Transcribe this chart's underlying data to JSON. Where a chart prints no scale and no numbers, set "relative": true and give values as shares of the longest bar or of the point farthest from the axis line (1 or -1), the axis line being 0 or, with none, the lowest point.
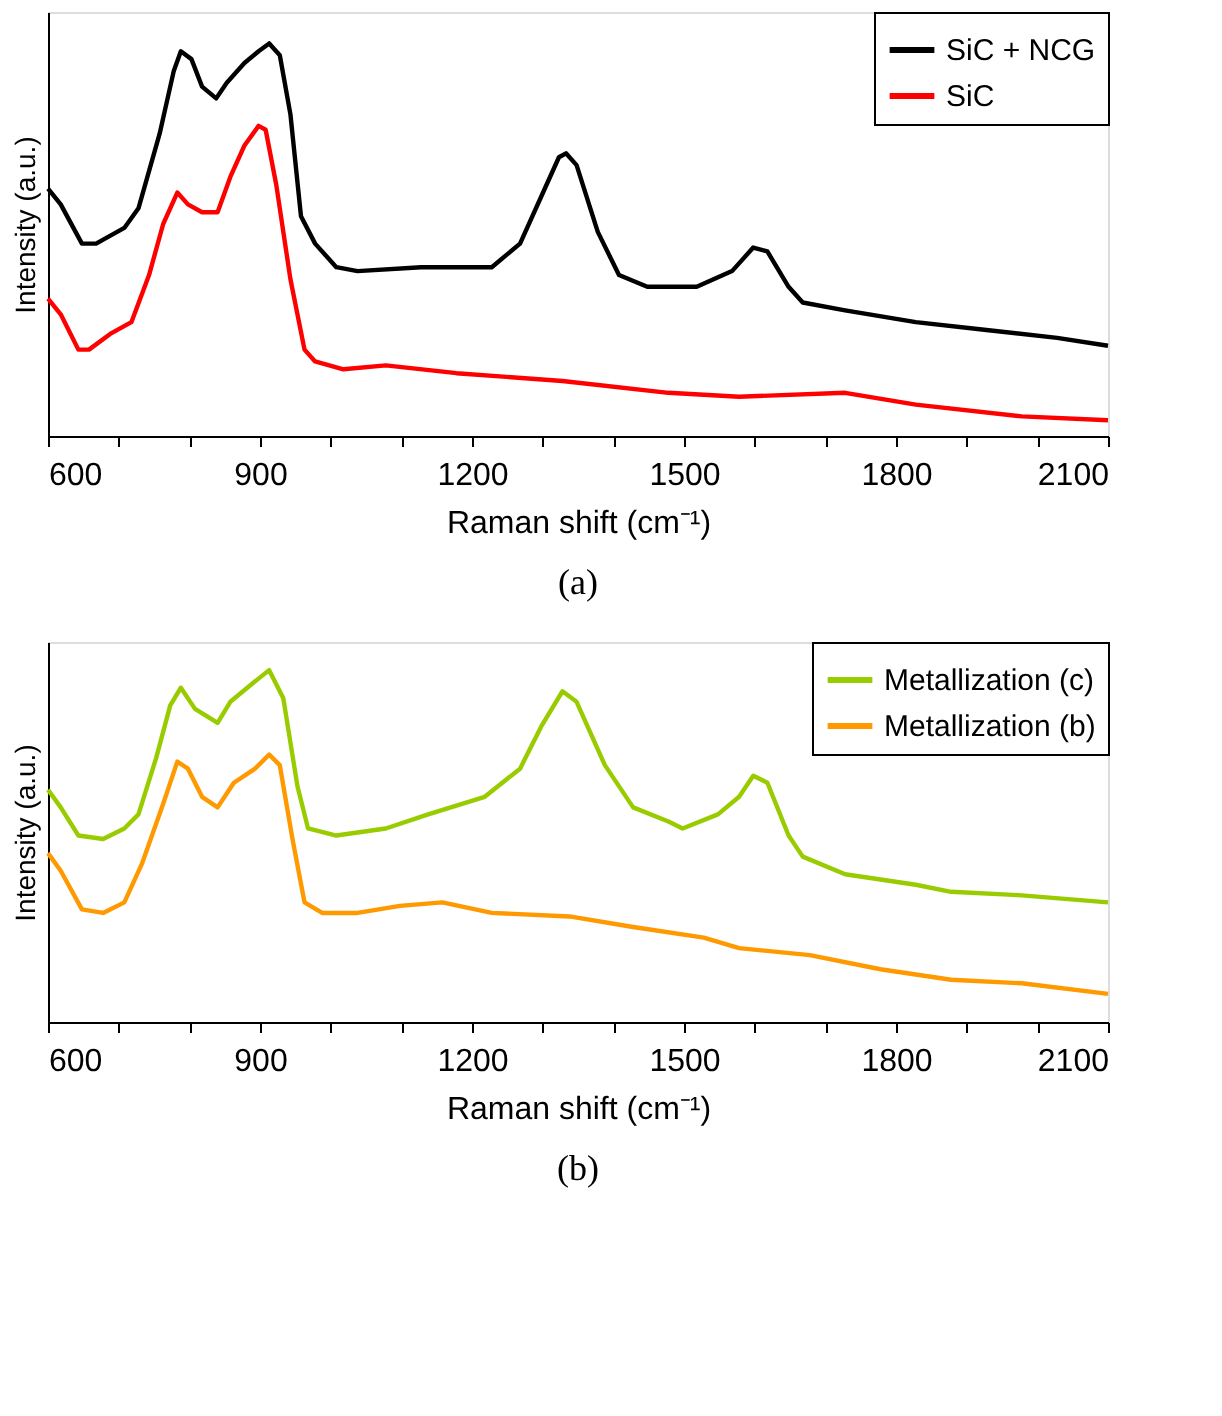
{
  "chart_data": [
    {
      "type": "line",
      "title": "(a)",
      "xlabel": "Raman shift (cm⁻¹)",
      "ylabel": "Intensity (a.u.)",
      "relative": true,
      "legend": "top right",
      "grid": false,
      "marker": "none",
      "line_style": "solid",
      "xlim": [
        600,
        2100
      ],
      "xticks": [
        600,
        {
          "value": 700,
          "label": null
        },
        {
          "value": 800,
          "label": null
        },
        900,
        {
          "value": 1000,
          "label": null
        },
        {
          "value": 1100,
          "label": null
        },
        1200,
        {
          "value": 1300,
          "label": null
        },
        {
          "value": 1400,
          "label": null
        },
        1500,
        {
          "value": 1600,
          "label": null
        },
        {
          "value": 1700,
          "label": null
        },
        1800,
        {
          "value": 1900,
          "label": null
        },
        {
          "value": 2000,
          "label": null
        },
        2100
      ],
      "series": [
        {
          "name": "SiC + NCG",
          "color": "#000000",
          "x": [
            600,
            618,
            648,
            668,
            708,
            728,
            758,
            778,
            788,
            803,
            818,
            838,
            853,
            878,
            898,
            913,
            928,
            943,
            958,
            978,
            1008,
            1038,
            1128,
            1228,
            1268,
            1298,
            1323,
            1333,
            1348,
            1378,
            1408,
            1448,
            1518,
            1568,
            1598,
            1618,
            1648,
            1668,
            1728,
            1828,
            1928,
            2028,
            2100
          ],
          "values": [
            0.63,
            0.59,
            0.49,
            0.49,
            0.53,
            0.58,
            0.77,
            0.93,
            0.98,
            0.96,
            0.89,
            0.86,
            0.9,
            0.95,
            0.98,
            1.0,
            0.97,
            0.82,
            0.56,
            0.49,
            0.43,
            0.42,
            0.43,
            0.43,
            0.49,
            0.61,
            0.71,
            0.72,
            0.69,
            0.52,
            0.41,
            0.38,
            0.38,
            0.42,
            0.48,
            0.47,
            0.38,
            0.34,
            0.32,
            0.29,
            0.27,
            0.25,
            0.23
          ]
        },
        {
          "name": "SiC",
          "color": "#ff0000",
          "x": [
            600,
            618,
            643,
            658,
            688,
            718,
            743,
            763,
            783,
            798,
            818,
            840,
            858,
            878,
            898,
            908,
            923,
            943,
            963,
            978,
            1018,
            1078,
            1178,
            1328,
            1478,
            1578,
            1728,
            1828,
            1978,
            2100
          ],
          "values": [
            0.35,
            0.31,
            0.22,
            0.22,
            0.26,
            0.29,
            0.41,
            0.54,
            0.62,
            0.59,
            0.57,
            0.57,
            0.66,
            0.74,
            0.79,
            0.78,
            0.64,
            0.4,
            0.22,
            0.19,
            0.17,
            0.18,
            0.16,
            0.14,
            0.11,
            0.1,
            0.11,
            0.08,
            0.05,
            0.04
          ]
        }
      ]
    },
    {
      "type": "line",
      "title": "(b)",
      "xlabel": "Raman shift (cm⁻¹)",
      "ylabel": "Intensity (a.u.)",
      "relative": true,
      "legend": "top right",
      "grid": false,
      "marker": "none",
      "line_style": "solid",
      "xlim": [
        600,
        2100
      ],
      "xticks": [
        600,
        {
          "value": 700,
          "label": null
        },
        {
          "value": 800,
          "label": null
        },
        900,
        {
          "value": 1000,
          "label": null
        },
        {
          "value": 1100,
          "label": null
        },
        1200,
        {
          "value": 1300,
          "label": null
        },
        {
          "value": 1400,
          "label": null
        },
        1500,
        {
          "value": 1600,
          "label": null
        },
        {
          "value": 1700,
          "label": null
        },
        1800,
        {
          "value": 1900,
          "label": null
        },
        {
          "value": 2000,
          "label": null
        },
        2100
      ],
      "series": [
        {
          "name": "Metallization (c)",
          "color": "#99cc00",
          "x": [
            600,
            618,
            643,
            678,
            708,
            728,
            753,
            773,
            788,
            808,
            840,
            858,
            888,
            913,
            933,
            953,
            968,
            1008,
            1078,
            1138,
            1218,
            1268,
            1298,
            1328,
            1348,
            1388,
            1428,
            1478,
            1498,
            1548,
            1578,
            1598,
            1618,
            1648,
            1668,
            1728,
            1828,
            1878,
            1978,
            2100
          ],
          "values": [
            0.66,
            0.61,
            0.53,
            0.52,
            0.55,
            0.59,
            0.75,
            0.9,
            0.95,
            0.89,
            0.85,
            0.91,
            0.96,
            1.0,
            0.92,
            0.67,
            0.55,
            0.53,
            0.55,
            0.59,
            0.64,
            0.72,
            0.84,
            0.94,
            0.91,
            0.73,
            0.61,
            0.57,
            0.55,
            0.59,
            0.64,
            0.7,
            0.68,
            0.53,
            0.47,
            0.42,
            0.39,
            0.37,
            0.36,
            0.34
          ]
        },
        {
          "name": "Metallization (b)",
          "color": "#ff9900",
          "x": [
            600,
            618,
            648,
            678,
            708,
            733,
            763,
            783,
            798,
            818,
            840,
            863,
            893,
            913,
            928,
            946,
            963,
            988,
            1038,
            1098,
            1158,
            1228,
            1338,
            1428,
            1528,
            1578,
            1678,
            1778,
            1878,
            1978,
            2100
          ],
          "values": [
            0.48,
            0.43,
            0.32,
            0.31,
            0.34,
            0.45,
            0.62,
            0.74,
            0.72,
            0.64,
            0.61,
            0.68,
            0.72,
            0.76,
            0.73,
            0.52,
            0.34,
            0.31,
            0.31,
            0.33,
            0.34,
            0.31,
            0.3,
            0.27,
            0.24,
            0.21,
            0.19,
            0.15,
            0.12,
            0.11,
            0.08
          ]
        }
      ]
    }
  ]
}
